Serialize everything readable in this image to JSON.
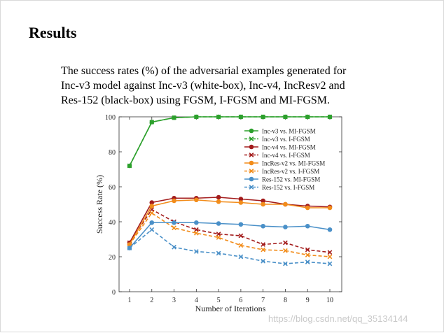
{
  "slide": {
    "title": "Results",
    "description_lines": [
      "The success rates (%) of the adversarial examples generated for",
      "Inc-v3 model against Inc-v3 (white-box), Inc-v4, IncResv2 and",
      "Res-152 (black-box) using FGSM, I-FGSM and MI-FGSM."
    ],
    "watermark": "https://blog.csdn.net/qq_35134144"
  },
  "chart_data": {
    "type": "line",
    "title": "",
    "xlabel": "Number of Iterations",
    "ylabel": "Success Rate (%)",
    "x": [
      1,
      2,
      3,
      4,
      5,
      6,
      7,
      8,
      9,
      10
    ],
    "xticks": [
      "1",
      "2",
      "3",
      "4",
      "5",
      "6",
      "7",
      "8",
      "9",
      "10"
    ],
    "yticks": [
      "0",
      "20",
      "40",
      "60",
      "80",
      "100"
    ],
    "ylim": [
      0,
      100
    ],
    "xlim": [
      0.5,
      10.5
    ],
    "grid": false,
    "legend_position": "top-right",
    "series": [
      {
        "name": "Inc-v3 vs. MI-FGSM",
        "color": "#2ca02c",
        "dash": false,
        "marker": "circle",
        "values": [
          72,
          97,
          99.5,
          100,
          100,
          100,
          100,
          100,
          100,
          100
        ]
      },
      {
        "name": "Inc-v3 vs. I-FGSM",
        "color": "#2ca02c",
        "dash": true,
        "marker": "x",
        "values": [
          72,
          97,
          99.5,
          100,
          100,
          100,
          100,
          100,
          100,
          100
        ]
      },
      {
        "name": "Inc-v4 vs. MI-FGSM",
        "color": "#a31c1c",
        "dash": false,
        "marker": "circle",
        "values": [
          28,
          51,
          53.5,
          53.5,
          54,
          53,
          52,
          50,
          49,
          48.5
        ]
      },
      {
        "name": "Inc-v4 vs. I-FGSM",
        "color": "#a31c1c",
        "dash": true,
        "marker": "x",
        "values": [
          28,
          47,
          40,
          35.5,
          33,
          32,
          27,
          28,
          24,
          22.5
        ]
      },
      {
        "name": "IncRes-v2 vs. MI-FGSM",
        "color": "#f28c1a",
        "dash": false,
        "marker": "circle",
        "values": [
          27,
          49,
          52,
          52.5,
          51.5,
          51,
          50,
          50,
          48,
          48
        ]
      },
      {
        "name": "IncRes-v2 vs. I-FGSM",
        "color": "#f28c1a",
        "dash": true,
        "marker": "x",
        "values": [
          27,
          45,
          36.5,
          33.5,
          31,
          26.5,
          24,
          23.5,
          21,
          20
        ]
      },
      {
        "name": "Res-152 vs. MI-FGSM",
        "color": "#4a90c8",
        "dash": false,
        "marker": "circle",
        "values": [
          25,
          39.5,
          39.5,
          39.5,
          39,
          38.5,
          37.5,
          37,
          37.5,
          35.5
        ]
      },
      {
        "name": "Res-152 vs. I-FGSM",
        "color": "#4a90c8",
        "dash": true,
        "marker": "x",
        "values": [
          25,
          35.5,
          25.5,
          23,
          22,
          20,
          17.5,
          16,
          17,
          16
        ]
      }
    ]
  }
}
